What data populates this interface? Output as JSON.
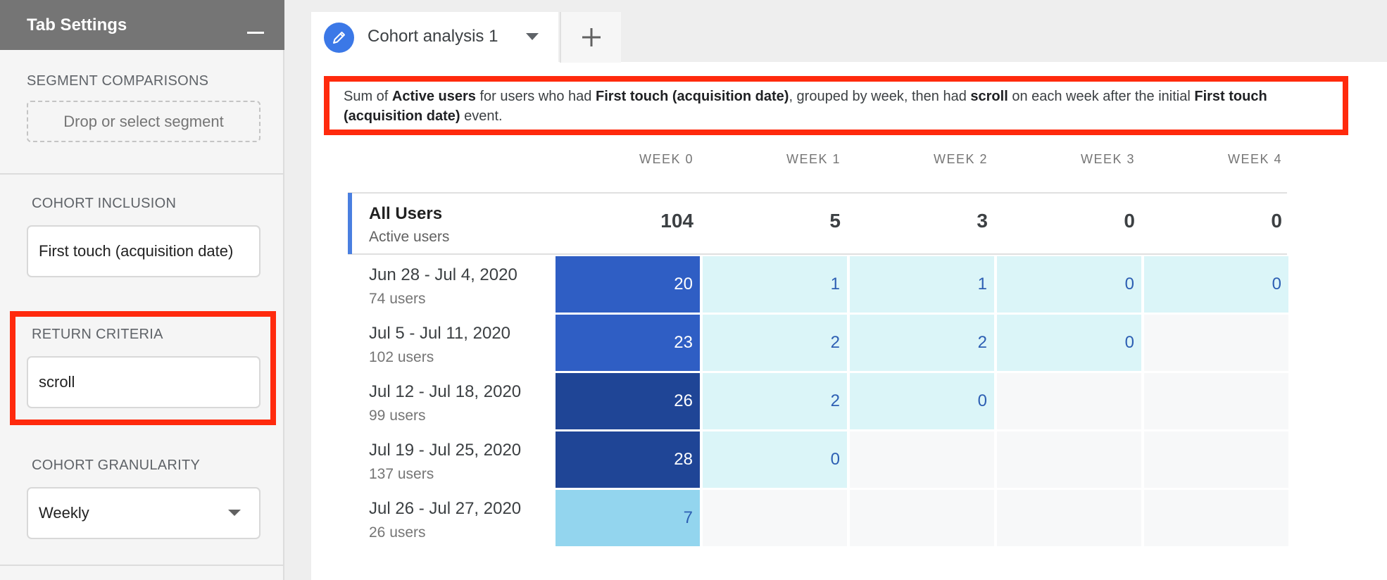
{
  "sidebar": {
    "title": "Tab Settings",
    "segment_comparisons": {
      "label": "SEGMENT COMPARISONS",
      "placeholder": "Drop or select segment"
    },
    "cohort_inclusion": {
      "label": "COHORT INCLUSION",
      "value": "First touch (acquisition date)"
    },
    "return_criteria": {
      "label": "RETURN CRITERIA",
      "value": "scroll"
    },
    "cohort_granularity": {
      "label": "COHORT GRANULARITY",
      "value": "Weekly"
    }
  },
  "tabs": {
    "active_label": "Cohort analysis 1"
  },
  "description": {
    "p1": "Sum of ",
    "b1": "Active users",
    "p2": " for users who had ",
    "b2": "First touch (acquisition date)",
    "p3": ", grouped by week, then had ",
    "b3": "scroll",
    "p4": " on each week after the initial ",
    "b4": "First touch (acquisition date)",
    "p5": " event."
  },
  "table": {
    "columns": [
      "WEEK 0",
      "WEEK 1",
      "WEEK 2",
      "WEEK 3",
      "WEEK 4"
    ],
    "totals": {
      "label": "All Users",
      "metric": "Active users",
      "values": [
        "104",
        "5",
        "3",
        "0",
        "0"
      ]
    },
    "rows": [
      {
        "cohort": "Jun 28 - Jul 4, 2020",
        "users": "74 users",
        "values": [
          "20",
          "1",
          "1",
          "0",
          "0"
        ]
      },
      {
        "cohort": "Jul 5 - Jul 11, 2020",
        "users": "102 users",
        "values": [
          "23",
          "2",
          "2",
          "0",
          ""
        ]
      },
      {
        "cohort": "Jul 12 - Jul 18, 2020",
        "users": "99 users",
        "values": [
          "26",
          "2",
          "0",
          "",
          ""
        ]
      },
      {
        "cohort": "Jul 19 - Jul 25, 2020",
        "users": "137 users",
        "values": [
          "28",
          "0",
          "",
          "",
          ""
        ]
      },
      {
        "cohort": "Jul 26 - Jul 27, 2020",
        "users": "26 users",
        "values": [
          "7",
          "",
          "",
          "",
          ""
        ]
      }
    ]
  },
  "colors": {
    "highlight_red": "#ff2a0d",
    "cell_light": "#dbf5f8",
    "cell_mid": "#2f5ec4",
    "cell_dark": "#1f4596",
    "cell_sky": "#93d5ee",
    "accent_blue": "#3b78e7"
  },
  "icons": {
    "tab_edit": "pencil-icon",
    "tab_menu": "chevron-down-icon",
    "add_tab": "plus-icon",
    "collapse": "minimize-icon"
  }
}
